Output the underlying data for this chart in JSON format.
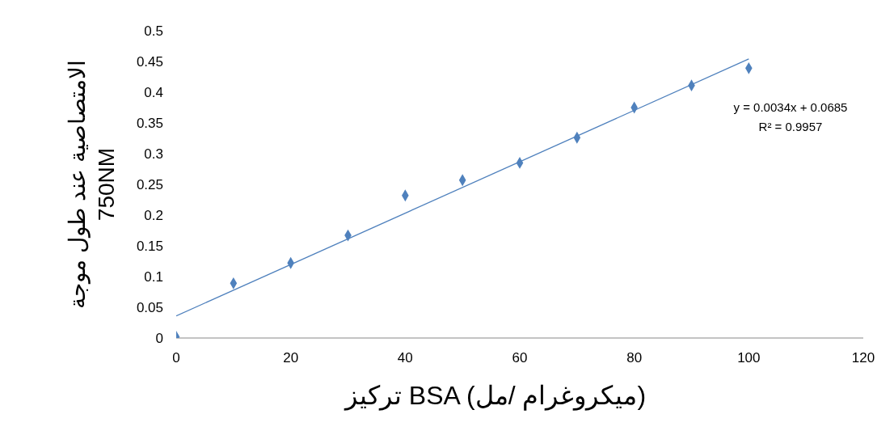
{
  "chart_data": {
    "type": "scatter",
    "xlabel": "تركيز  BSA (ميكروغرام /مل)",
    "ylabel": "الامتصاصية عند طول موجة 750NM",
    "x": [
      0,
      10,
      20,
      30,
      40,
      50,
      60,
      70,
      80,
      90,
      100
    ],
    "series": [
      {
        "color": "#4f81bd",
        "marker": "diamond",
        "values": [
          0.002,
          0.089,
          0.122,
          0.167,
          0.232,
          0.257,
          0.285,
          0.326,
          0.375,
          0.411,
          0.439
        ]
      },
      {
        "type": "line",
        "color": "#4f81bd",
        "marker": "none",
        "x": [
          0,
          100
        ],
        "values": [
          0.036,
          0.454
        ]
      }
    ],
    "xlim": [
      0,
      120
    ],
    "xticks": [
      0,
      20,
      40,
      60,
      80,
      100,
      120
    ],
    "ylim": [
      0,
      0.5
    ],
    "yticks": [
      0,
      0.05,
      0.1,
      0.15,
      0.2,
      0.25,
      0.3,
      0.35,
      0.4,
      0.45,
      0.5
    ],
    "grid": false,
    "legend": false,
    "annotations": [
      "y = 0.0034x + 0.0685",
      "R² = 0.9957"
    ]
  }
}
